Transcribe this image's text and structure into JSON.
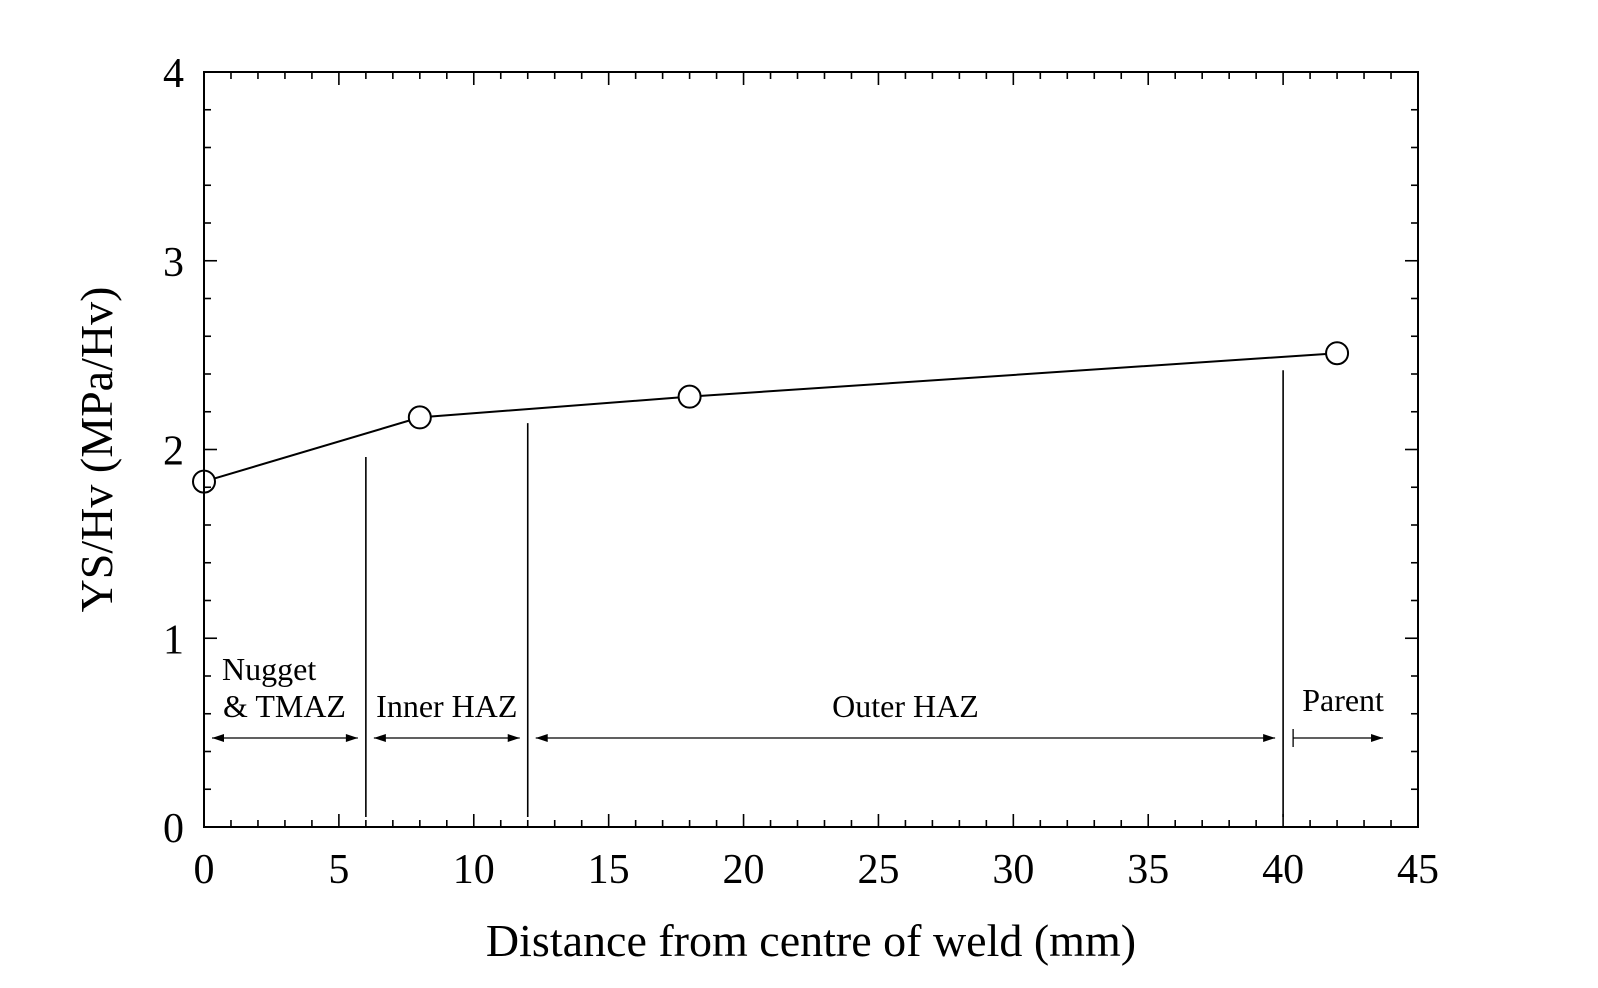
{
  "chart_data": {
    "type": "line",
    "title": "",
    "xlabel": "Distance from centre of weld (mm)",
    "ylabel": "YS/Hv (MPa/Hv)",
    "xlim": [
      0,
      45
    ],
    "ylim": [
      0,
      4
    ],
    "xticks": [
      0,
      5,
      10,
      15,
      20,
      25,
      30,
      35,
      40,
      45
    ],
    "yticks": [
      0,
      1,
      2,
      3,
      4
    ],
    "xtick_labels": [
      "0",
      "5",
      "10",
      "15",
      "20",
      "25",
      "30",
      "35",
      "40",
      "45"
    ],
    "ytick_labels": [
      "0",
      "1",
      "2",
      "3",
      "4"
    ],
    "grid": false,
    "series": [
      {
        "x": [
          0,
          8,
          18,
          42
        ],
        "y": [
          1.83,
          2.17,
          2.28,
          2.51
        ],
        "marker": "open-circle",
        "color": "#000000"
      }
    ],
    "zones": [
      {
        "label_lines": [
          "Nugget",
          "& TMAZ"
        ],
        "x_start": 0,
        "x_end": 6
      },
      {
        "label_lines": [
          "Inner HAZ"
        ],
        "x_start": 6,
        "x_end": 12
      },
      {
        "label_lines": [
          "Outer HAZ"
        ],
        "x_start": 12,
        "x_end": 40
      },
      {
        "label_lines": [
          "Parent"
        ],
        "x_start": 40,
        "x_end": 44
      }
    ],
    "boundaries": [
      {
        "x": 6,
        "y_top": 1.96
      },
      {
        "x": 12,
        "y_top": 2.14
      },
      {
        "x": 40,
        "y_top": 2.42
      }
    ]
  }
}
